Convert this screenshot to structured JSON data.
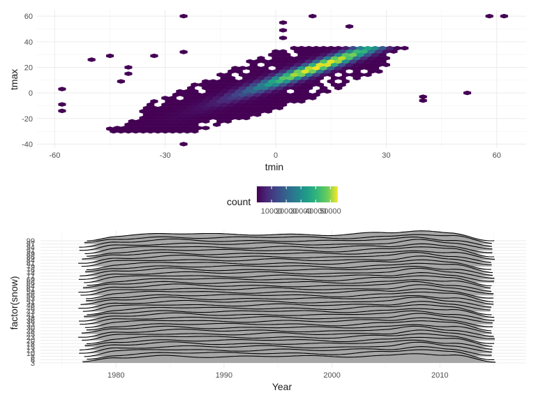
{
  "chart_data": [
    {
      "type": "hexbin",
      "xlabel": "tmin",
      "ylabel": "tmax",
      "xlim": [
        -65,
        68
      ],
      "ylim": [
        -43,
        65
      ],
      "x_ticks": [
        -60,
        -30,
        0,
        30,
        60
      ],
      "y_ticks": [
        -40,
        -20,
        0,
        20,
        40,
        60
      ],
      "grid": true,
      "legend": {
        "title": "count",
        "placement": "bottom",
        "colormap": "viridis",
        "range": [
          0,
          55000
        ],
        "ticks": [
          10000,
          20000,
          30000,
          40000,
          50000
        ],
        "tick_labels": [
          "10000",
          "20000",
          "30000",
          "40000",
          "50000"
        ]
      },
      "outliers": [
        {
          "x": -25,
          "y": 60,
          "count": 1
        },
        {
          "x": 10,
          "y": 60,
          "count": 1
        },
        {
          "x": 58,
          "y": 60,
          "count": 1
        },
        {
          "x": 62,
          "y": 60,
          "count": 1
        },
        {
          "x": 20,
          "y": 52,
          "count": 1
        },
        {
          "x": 2,
          "y": 55,
          "count": 1
        },
        {
          "x": 2,
          "y": 49,
          "count": 1
        },
        {
          "x": 2,
          "y": 43,
          "count": 1
        },
        {
          "x": -50,
          "y": 26,
          "count": 1
        },
        {
          "x": -45,
          "y": 29,
          "count": 1
        },
        {
          "x": -33,
          "y": 29,
          "count": 1
        },
        {
          "x": -25,
          "y": 32,
          "count": 1
        },
        {
          "x": -40,
          "y": 20,
          "count": 1
        },
        {
          "x": -40,
          "y": 15,
          "count": 1
        },
        {
          "x": -42,
          "y": 9,
          "count": 1
        },
        {
          "x": -58,
          "y": 3,
          "count": 1
        },
        {
          "x": -58,
          "y": -9,
          "count": 1
        },
        {
          "x": -58,
          "y": -14,
          "count": 1
        },
        {
          "x": -45,
          "y": -28,
          "count": 1
        },
        {
          "x": -25,
          "y": -40,
          "count": 1
        },
        {
          "x": 52,
          "y": 0,
          "count": 1
        },
        {
          "x": 40,
          "y": -3,
          "count": 1
        },
        {
          "x": 40,
          "y": -6,
          "count": 1
        }
      ],
      "density_ridge": {
        "slope": 1.0,
        "intercept": 9,
        "peak": {
          "x": 12,
          "y": 23,
          "count": 55000
        }
      }
    },
    {
      "type": "ridgeline",
      "xlabel": "Year",
      "ylabel": "factor(snow)",
      "xlim": [
        1973,
        2018
      ],
      "x_ticks": [
        1980,
        1990,
        2000,
        2010
      ],
      "y_tick_labels": [
        "3",
        "6",
        "8",
        "10",
        "13",
        "15",
        "18",
        "20",
        "23",
        "25",
        "28",
        "30",
        "33",
        "36",
        "38",
        "41",
        "43",
        "46",
        "48",
        "51",
        "53",
        "56",
        "58",
        "61",
        "64",
        "66",
        "69",
        "71",
        "74",
        "76",
        "79",
        "81",
        "84",
        "86",
        "89",
        "91",
        "94",
        "97",
        "99"
      ],
      "fill_color": "#a6a6a6",
      "line_color": "#000000",
      "curve_shape": {
        "years": [
          1977,
          1980,
          1985,
          1990,
          1995,
          2000,
          2005,
          2008,
          2011,
          2015
        ],
        "relative_density": [
          0.05,
          0.6,
          0.85,
          0.75,
          0.8,
          0.72,
          0.9,
          1.2,
          0.9,
          0.1
        ]
      }
    }
  ]
}
